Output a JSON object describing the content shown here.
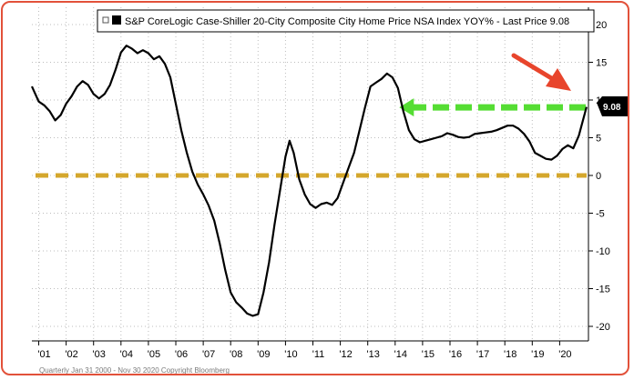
{
  "legend": {
    "label": "S&P CoreLogic Case-Shiller 20-City Composite City Home Price NSA Index YOY% - Last Price 9.08"
  },
  "last_value_label": "9.08",
  "footer": {
    "text": "Quarterly Jan 31 2000 - Nov 30 2020 Copyright Bloomberg"
  },
  "colors": {
    "series": "#000000",
    "zero_line": "#d4a72c",
    "arrow_green": "#55dd33",
    "arrow_red": "#e8452c",
    "frame": "#e2513a",
    "last_box": "#000000"
  },
  "chart_data": {
    "type": "line",
    "title": "S&P CoreLogic Case-Shiller 20-City Composite City Home Price NSA Index YOY% - Last Price 9.08",
    "xlabel": "",
    "ylabel": "",
    "x_tick_labels": [
      "'01",
      "'02",
      "'03",
      "'04",
      "'05",
      "'06",
      "'07",
      "'08",
      "'09",
      "'10",
      "'11",
      "'12",
      "'13",
      "'14",
      "'15",
      "'16",
      "'17",
      "'18",
      "'19",
      "'20"
    ],
    "y_ticks": [
      20,
      15,
      10,
      5,
      0,
      -5,
      -10,
      -15,
      -20
    ],
    "ylim": [
      -21,
      21
    ],
    "xlim": [
      2000.75,
      2021.05
    ],
    "grid": true,
    "y_axis_side": "right",
    "legend_position": "top",
    "series": [
      {
        "name": "S&P CoreLogic Case-Shiller 20-City Composite City Home Price NSA Index YOY%",
        "last_price": 9.08,
        "points": [
          [
            2000.75,
            11.8
          ],
          [
            2001.0,
            9.8
          ],
          [
            2001.2,
            9.3
          ],
          [
            2001.4,
            8.5
          ],
          [
            2001.6,
            7.3
          ],
          [
            2001.8,
            8.0
          ],
          [
            2002.0,
            9.5
          ],
          [
            2002.2,
            10.5
          ],
          [
            2002.4,
            11.8
          ],
          [
            2002.6,
            12.5
          ],
          [
            2002.8,
            12.0
          ],
          [
            2003.0,
            10.8
          ],
          [
            2003.2,
            10.2
          ],
          [
            2003.4,
            10.8
          ],
          [
            2003.6,
            12.0
          ],
          [
            2003.8,
            14.0
          ],
          [
            2004.0,
            16.3
          ],
          [
            2004.2,
            17.2
          ],
          [
            2004.4,
            16.8
          ],
          [
            2004.6,
            16.2
          ],
          [
            2004.8,
            16.6
          ],
          [
            2005.0,
            16.2
          ],
          [
            2005.2,
            15.4
          ],
          [
            2005.4,
            15.8
          ],
          [
            2005.6,
            14.8
          ],
          [
            2005.8,
            13.0
          ],
          [
            2006.0,
            9.5
          ],
          [
            2006.2,
            6.0
          ],
          [
            2006.4,
            3.0
          ],
          [
            2006.6,
            0.5
          ],
          [
            2006.8,
            -1.2
          ],
          [
            2007.0,
            -2.5
          ],
          [
            2007.2,
            -4.0
          ],
          [
            2007.4,
            -6.0
          ],
          [
            2007.6,
            -9.0
          ],
          [
            2007.8,
            -12.5
          ],
          [
            2008.0,
            -15.5
          ],
          [
            2008.2,
            -16.8
          ],
          [
            2008.4,
            -17.5
          ],
          [
            2008.6,
            -18.3
          ],
          [
            2008.8,
            -18.6
          ],
          [
            2009.0,
            -18.4
          ],
          [
            2009.2,
            -15.5
          ],
          [
            2009.4,
            -11.5
          ],
          [
            2009.6,
            -6.5
          ],
          [
            2009.8,
            -2.0
          ],
          [
            2010.0,
            2.5
          ],
          [
            2010.15,
            4.6
          ],
          [
            2010.3,
            3.0
          ],
          [
            2010.5,
            -0.5
          ],
          [
            2010.7,
            -2.5
          ],
          [
            2010.9,
            -3.8
          ],
          [
            2011.1,
            -4.3
          ],
          [
            2011.3,
            -3.8
          ],
          [
            2011.5,
            -3.6
          ],
          [
            2011.7,
            -3.9
          ],
          [
            2011.9,
            -3.0
          ],
          [
            2012.1,
            -1.0
          ],
          [
            2012.3,
            1.0
          ],
          [
            2012.5,
            3.0
          ],
          [
            2012.7,
            6.0
          ],
          [
            2012.9,
            9.0
          ],
          [
            2013.1,
            11.8
          ],
          [
            2013.3,
            12.3
          ],
          [
            2013.5,
            12.8
          ],
          [
            2013.7,
            13.5
          ],
          [
            2013.9,
            13.0
          ],
          [
            2014.1,
            11.6
          ],
          [
            2014.3,
            8.5
          ],
          [
            2014.5,
            6.0
          ],
          [
            2014.7,
            4.8
          ],
          [
            2014.9,
            4.4
          ],
          [
            2015.1,
            4.6
          ],
          [
            2015.3,
            4.8
          ],
          [
            2015.5,
            5.0
          ],
          [
            2015.7,
            5.2
          ],
          [
            2015.9,
            5.6
          ],
          [
            2016.1,
            5.4
          ],
          [
            2016.3,
            5.1
          ],
          [
            2016.5,
            5.0
          ],
          [
            2016.7,
            5.1
          ],
          [
            2016.9,
            5.5
          ],
          [
            2017.1,
            5.6
          ],
          [
            2017.3,
            5.7
          ],
          [
            2017.5,
            5.8
          ],
          [
            2017.7,
            6.0
          ],
          [
            2017.9,
            6.3
          ],
          [
            2018.1,
            6.6
          ],
          [
            2018.3,
            6.6
          ],
          [
            2018.5,
            6.2
          ],
          [
            2018.7,
            5.5
          ],
          [
            2018.9,
            4.5
          ],
          [
            2019.1,
            3.0
          ],
          [
            2019.3,
            2.6
          ],
          [
            2019.5,
            2.2
          ],
          [
            2019.7,
            2.1
          ],
          [
            2019.9,
            2.6
          ],
          [
            2020.1,
            3.5
          ],
          [
            2020.3,
            4.0
          ],
          [
            2020.5,
            3.6
          ],
          [
            2020.7,
            5.3
          ],
          [
            2020.9,
            8.0
          ],
          [
            2020.98,
            9.08
          ]
        ]
      }
    ],
    "reference_lines": [
      {
        "orientation": "horizontal",
        "y": 0,
        "style": "dashed",
        "color": "#d4a72c"
      },
      {
        "orientation": "horizontal",
        "y": 9.08,
        "style": "dashed-arrow",
        "color": "#55dd33",
        "x_start": 2014.15,
        "x_end": 2020.95
      }
    ]
  }
}
